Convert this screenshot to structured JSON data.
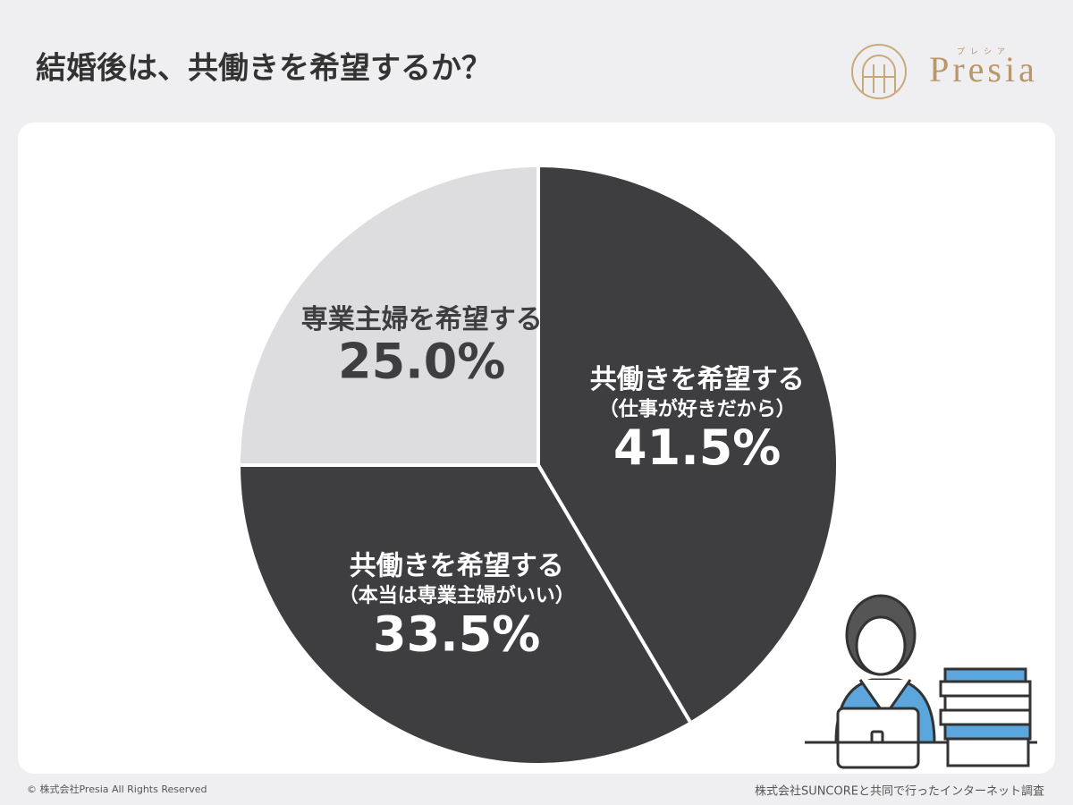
{
  "chart_data": {
    "type": "pie",
    "title": "結婚後は、共働きを希望するか？",
    "categories": [
      [
        "共働きを希望する",
        "（仕事が好きだから）"
      ],
      [
        "共働きを希望する",
        "（本当は専業主婦がいい）"
      ],
      [
        "専業主婦を希望する"
      ]
    ],
    "values": [
      41.5,
      33.5,
      25.0
    ],
    "value_labels": [
      "41.5%",
      "33.5%",
      "25.0%"
    ],
    "colors": [
      "#3e3d40",
      "#3e3d40",
      "#dddcdf"
    ]
  },
  "logo": {
    "name": "Presia",
    "reading": "プレシア"
  },
  "footer": {
    "copyright": "© 株式会社Presia All Rights Reserved",
    "source": "株式会社SUNCOREと共同で行ったインターネット調査"
  }
}
